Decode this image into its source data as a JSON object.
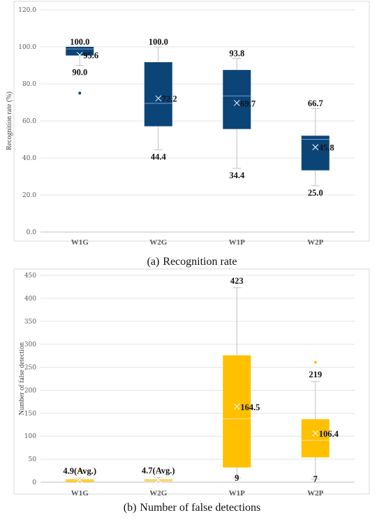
{
  "chart_data": [
    {
      "type": "box",
      "caption_prefix": "(a)",
      "caption": "Recognition rate",
      "ylabel": "Recognition rate (%)",
      "ylim": [
        0,
        120
      ],
      "yticks": [
        "0.0",
        "20.0",
        "40.0",
        "60.0",
        "80.0",
        "100.0",
        "120.0"
      ],
      "categories": [
        "W1G",
        "W2G",
        "W1P",
        "W2P"
      ],
      "colors": {
        "box": "#0b4578",
        "median": "#7a9ccc",
        "whisker": "#bfbfbf",
        "outlier": "#0b4578"
      },
      "boxes": [
        {
          "name": "W1G",
          "min": 90.0,
          "q1": 95.3,
          "median": 98.8,
          "q3": 100.0,
          "max": 100.0,
          "mean": 95.6,
          "outliers": [
            75.0
          ],
          "labels": {
            "top": "100.0",
            "bottom": "90.0",
            "mean": "95.6"
          }
        },
        {
          "name": "W2G",
          "min": 44.4,
          "q1": 57.1,
          "median": 69.5,
          "q3": 91.7,
          "max": 100.0,
          "mean": 72.2,
          "outliers": [],
          "labels": {
            "top": "100.0",
            "bottom": "44.4",
            "mean": "72.2"
          }
        },
        {
          "name": "W1P",
          "min": 34.4,
          "q1": 55.6,
          "median": 73.5,
          "q3": 87.5,
          "max": 93.8,
          "mean": 69.7,
          "outliers": [],
          "labels": {
            "top": "93.8",
            "bottom": "34.4",
            "mean": "69.7"
          }
        },
        {
          "name": "W2P",
          "min": 25.0,
          "q1": 33.3,
          "median": 50.0,
          "q3": 52.0,
          "max": 66.7,
          "mean": 45.8,
          "outliers": [],
          "labels": {
            "top": "66.7",
            "bottom": "25.0",
            "mean": "45.8"
          }
        }
      ]
    },
    {
      "type": "box",
      "caption_prefix": "(b)",
      "caption": "Number of false detections",
      "ylabel": "Number of false detection",
      "ylim": [
        0,
        450
      ],
      "yticks": [
        "0",
        "50",
        "100",
        "150",
        "200",
        "250",
        "300",
        "350",
        "400",
        "450"
      ],
      "categories": [
        "W1G",
        "W2G",
        "W1P",
        "W2P"
      ],
      "colors": {
        "box": "#ffc000",
        "median": "#ffe699",
        "whisker": "#bfbfbf",
        "outlier": "#ffc000"
      },
      "boxes": [
        {
          "name": "W1G",
          "min": 0,
          "q1": 0,
          "median": 3,
          "q3": 6,
          "max": 9,
          "mean": 4.9,
          "outliers": [
            25
          ],
          "labels": {
            "top": "4.9(Avg.)",
            "bottom": "",
            "mean": ""
          }
        },
        {
          "name": "W2G",
          "min": 0,
          "q1": 2,
          "median": 4,
          "q3": 6,
          "max": 10,
          "mean": 4.7,
          "outliers": [],
          "labels": {
            "top": "4.7(Avg.)",
            "bottom": "",
            "mean": ""
          }
        },
        {
          "name": "W1P",
          "min": 9,
          "q1": 32,
          "median": 138,
          "q3": 276,
          "max": 423,
          "mean": 164.5,
          "outliers": [],
          "labels": {
            "top": "423",
            "bottom": "9",
            "mean": "164.5"
          }
        },
        {
          "name": "W2P",
          "min": 7,
          "q1": 54,
          "median": 91,
          "q3": 137,
          "max": 219,
          "mean": 106.4,
          "outliers": [
            261
          ],
          "labels": {
            "top": "219",
            "bottom": "7",
            "mean": "106.4"
          }
        }
      ]
    }
  ]
}
